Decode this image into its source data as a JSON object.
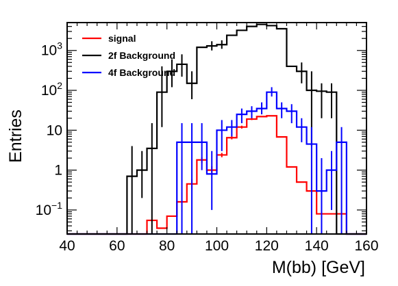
{
  "chart_data": {
    "type": "histogram",
    "xlabel": "M(bb) [GeV]",
    "ylabel": "Entries",
    "xlim": [
      40,
      160
    ],
    "ylim": [
      0.025,
      5000
    ],
    "yscale": "log",
    "grid": false,
    "legend_position": "top-left",
    "x_ticks": [
      "40",
      "60",
      "80",
      "100",
      "120",
      "140",
      "160"
    ],
    "y_ticks": [
      {
        "value": 0.1,
        "base": "10",
        "exp": "−1"
      },
      {
        "value": 1,
        "label": "1"
      },
      {
        "value": 10,
        "label": "10"
      },
      {
        "value": 100,
        "base": "10",
        "exp": "2"
      },
      {
        "value": 1000,
        "base": "10",
        "exp": "3"
      }
    ],
    "bin_width": 4,
    "bin_edges": [
      40,
      44,
      48,
      52,
      56,
      60,
      64,
      68,
      72,
      76,
      80,
      84,
      88,
      92,
      96,
      100,
      104,
      108,
      112,
      116,
      120,
      124,
      128,
      132,
      136,
      140,
      144,
      148,
      152,
      156,
      160
    ],
    "series": [
      {
        "name": "signal",
        "color": "#ff0000",
        "bins": [
          {
            "x": 72,
            "y": 0.055
          },
          {
            "x": 76,
            "y": 0.035
          },
          {
            "x": 80,
            "y": 0.07
          },
          {
            "x": 84,
            "y": 0.16,
            "err": [
              0.09,
              0.28
            ]
          },
          {
            "x": 88,
            "y": 0.45,
            "err": [
              0.32,
              0.6
            ]
          },
          {
            "x": 92,
            "y": 1.8,
            "err": [
              1.5,
              2.1
            ]
          },
          {
            "x": 96,
            "y": 1.0,
            "err": [
              0.8,
              1.25
            ]
          },
          {
            "x": 100,
            "y": 2.4,
            "err": [
              2.1,
              2.7
            ]
          },
          {
            "x": 104,
            "y": 6.5,
            "err": [
              5.9,
              7.1
            ]
          },
          {
            "x": 108,
            "y": 12,
            "err": [
              11,
              13
            ]
          },
          {
            "x": 112,
            "y": 19,
            "err": [
              18,
              20.5
            ]
          },
          {
            "x": 116,
            "y": 22
          },
          {
            "x": 120,
            "y": 23
          },
          {
            "x": 124,
            "y": 6.8
          },
          {
            "x": 128,
            "y": 1.2
          },
          {
            "x": 132,
            "y": 0.5
          },
          {
            "x": 136,
            "y": 0.3
          },
          {
            "x": 140,
            "y": 0.08
          },
          {
            "x": 144,
            "y": 0.08
          },
          {
            "x": 148,
            "y": 0.08
          }
        ]
      },
      {
        "name": "2f Background",
        "color": "#000000",
        "bins": [
          {
            "x": 64,
            "y": 0.7,
            "err": [
              0.025,
              4
            ]
          },
          {
            "x": 68,
            "y": 1.0,
            "err": [
              0.2,
              3
            ]
          },
          {
            "x": 72,
            "y": 3.5,
            "err": [
              0.025,
              15
            ]
          },
          {
            "x": 76,
            "y": 90,
            "err": [
              12,
              400
            ]
          },
          {
            "x": 80,
            "y": 300,
            "err": [
              120,
              600
            ]
          },
          {
            "x": 84,
            "y": 450,
            "err": [
              220,
              800
            ]
          },
          {
            "x": 88,
            "y": 150,
            "err": [
              60,
              300
            ]
          },
          {
            "x": 92,
            "y": 1200
          },
          {
            "x": 96,
            "y": 1300,
            "err": [
              1000,
              1700
            ]
          },
          {
            "x": 100,
            "y": 1400,
            "err": [
              1100,
              1800
            ]
          },
          {
            "x": 104,
            "y": 2400
          },
          {
            "x": 108,
            "y": 3200
          },
          {
            "x": 112,
            "y": 4000
          },
          {
            "x": 116,
            "y": 4500
          },
          {
            "x": 120,
            "y": 4200
          },
          {
            "x": 124,
            "y": 3500
          },
          {
            "x": 128,
            "y": 400
          },
          {
            "x": 132,
            "y": 300,
            "err": [
              150,
              500
            ]
          },
          {
            "x": 136,
            "y": 100,
            "err": [
              4,
              300
            ]
          },
          {
            "x": 140,
            "y": 95,
            "err": [
              20,
              150
            ]
          },
          {
            "x": 144,
            "y": 90,
            "err": [
              20,
              150
            ]
          }
        ]
      },
      {
        "name": "4f Background",
        "color": "#0000ff",
        "bins": [
          {
            "x": 84,
            "y": 5,
            "err": [
              0.025,
              15
            ]
          },
          {
            "x": 88,
            "y": 5,
            "err": [
              0.025,
              15
            ]
          },
          {
            "x": 92,
            "y": 5,
            "err": [
              1,
              15
            ]
          },
          {
            "x": 96,
            "y": 0.8,
            "err": [
              0.1,
              3
            ]
          },
          {
            "x": 100,
            "y": 10,
            "err": [
              3,
              18
            ]
          },
          {
            "x": 104,
            "y": 12,
            "err": [
              7,
              18
            ]
          },
          {
            "x": 108,
            "y": 25,
            "err": [
              15,
              35
            ]
          },
          {
            "x": 112,
            "y": 30,
            "err": [
              20,
              40
            ]
          },
          {
            "x": 116,
            "y": 35,
            "err": [
              25,
              50
            ]
          },
          {
            "x": 120,
            "y": 90,
            "err": [
              70,
              120
            ]
          },
          {
            "x": 124,
            "y": 35,
            "err": [
              20,
              50
            ]
          },
          {
            "x": 128,
            "y": 30,
            "err": [
              15,
              45
            ]
          },
          {
            "x": 132,
            "y": 12,
            "err": [
              5,
              20
            ]
          },
          {
            "x": 136,
            "y": 4.5,
            "err": [
              0.025,
              12
            ]
          },
          {
            "x": 140,
            "y": 0.3,
            "err": [
              0.025,
              2
            ]
          },
          {
            "x": 144,
            "y": 1.0,
            "err": [
              0.1,
              3
            ]
          },
          {
            "x": 148,
            "y": 5,
            "err": [
              0.025,
              12
            ]
          }
        ]
      }
    ]
  }
}
